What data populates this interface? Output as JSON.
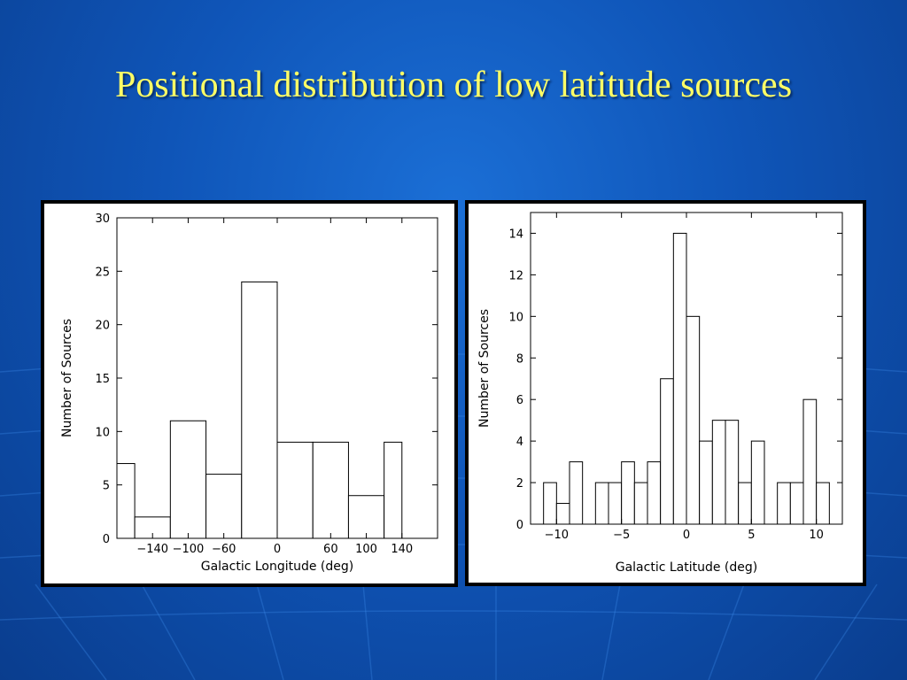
{
  "slide": {
    "title": "Positional distribution of low latitude sources"
  },
  "colors": {
    "title": "#ffff66",
    "background": "#0f55b8",
    "bars": "#ffffff",
    "axes": "#000000"
  },
  "chart_data": [
    {
      "type": "bar",
      "subtype": "histogram",
      "xlabel": "Galactic Longitude (deg)",
      "ylabel": "Number of Sources",
      "xlim": [
        -180,
        180
      ],
      "ylim": [
        0,
        30
      ],
      "xticks": [
        -140,
        -100,
        -60,
        0,
        60,
        100,
        140
      ],
      "xtick_labels": [
        "−140",
        "−100",
        "−60",
        "0",
        "60",
        "100",
        "140"
      ],
      "yticks": [
        0,
        5,
        10,
        15,
        20,
        25,
        30
      ],
      "bin_edges": [
        -180,
        -160,
        -120,
        -80,
        -40,
        0,
        40,
        80,
        120,
        140
      ],
      "values": [
        7,
        2,
        11,
        6,
        24,
        9,
        9,
        4,
        9
      ]
    },
    {
      "type": "bar",
      "subtype": "histogram",
      "xlabel": "Galactic Latitude (deg)",
      "ylabel": "Number of Sources",
      "xlim": [
        -12,
        12
      ],
      "ylim": [
        0,
        15
      ],
      "xticks": [
        -10,
        -5,
        0,
        5,
        10
      ],
      "xtick_labels": [
        "−10",
        "−5",
        "0",
        "5",
        "10"
      ],
      "yticks": [
        0,
        2,
        4,
        6,
        8,
        10,
        12,
        14
      ],
      "bin_edges": [
        -11,
        -10,
        -9,
        -8,
        -7,
        -6,
        -5,
        -4,
        -3,
        -2,
        -1,
        0,
        1,
        2,
        3,
        4,
        5,
        6,
        7,
        8,
        9,
        10,
        11
      ],
      "values": [
        2,
        1,
        3,
        0,
        2,
        2,
        3,
        2,
        3,
        7,
        14,
        10,
        4,
        5,
        5,
        2,
        4,
        0,
        2,
        2,
        6,
        2
      ]
    }
  ]
}
